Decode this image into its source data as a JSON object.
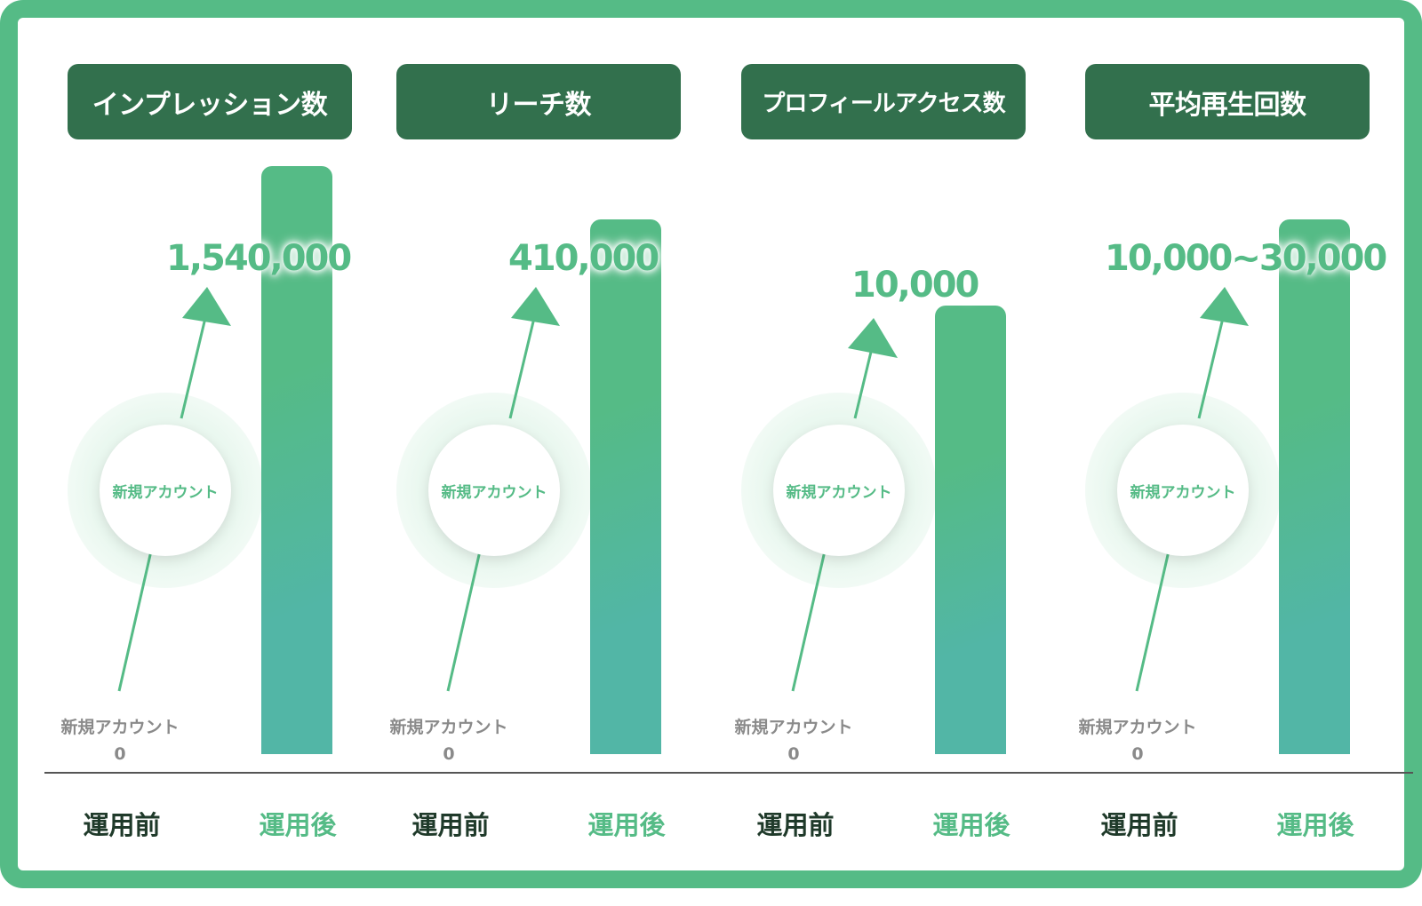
{
  "chart_data": [
    {
      "type": "bar",
      "title": "インプレッション数",
      "categories": [
        "運用前",
        "運用後"
      ],
      "before": {
        "label": "新規アカウント",
        "value": "0"
      },
      "circle_label": "新規アカウント",
      "after_value": 1540000,
      "after_label": "1,540,000"
    },
    {
      "type": "bar",
      "title": "リーチ数",
      "categories": [
        "運用前",
        "運用後"
      ],
      "before": {
        "label": "新規アカウント",
        "value": "0"
      },
      "circle_label": "新規アカウント",
      "after_value": 410000,
      "after_label": "410,000"
    },
    {
      "type": "bar",
      "title": "プロフィールアクセス数",
      "categories": [
        "運用前",
        "運用後"
      ],
      "before": {
        "label": "新規アカウント",
        "value": "0"
      },
      "circle_label": "新規アカウント",
      "after_value": 10000,
      "after_label": "10,000"
    },
    {
      "type": "bar",
      "title": "平均再生回数",
      "categories": [
        "運用前",
        "運用後"
      ],
      "before": {
        "label": "新規アカウント",
        "value": "0"
      },
      "circle_label": "新規アカウント",
      "after_value": 30000,
      "after_label": "10,000~30,000"
    }
  ],
  "colors": {
    "frame": "#55bb86",
    "title_bg": "#32704d",
    "accent": "#55bb86",
    "bar_bottom": "#52b6a6",
    "before_label": "#1f3a2a",
    "muted": "#8a8a8a"
  }
}
